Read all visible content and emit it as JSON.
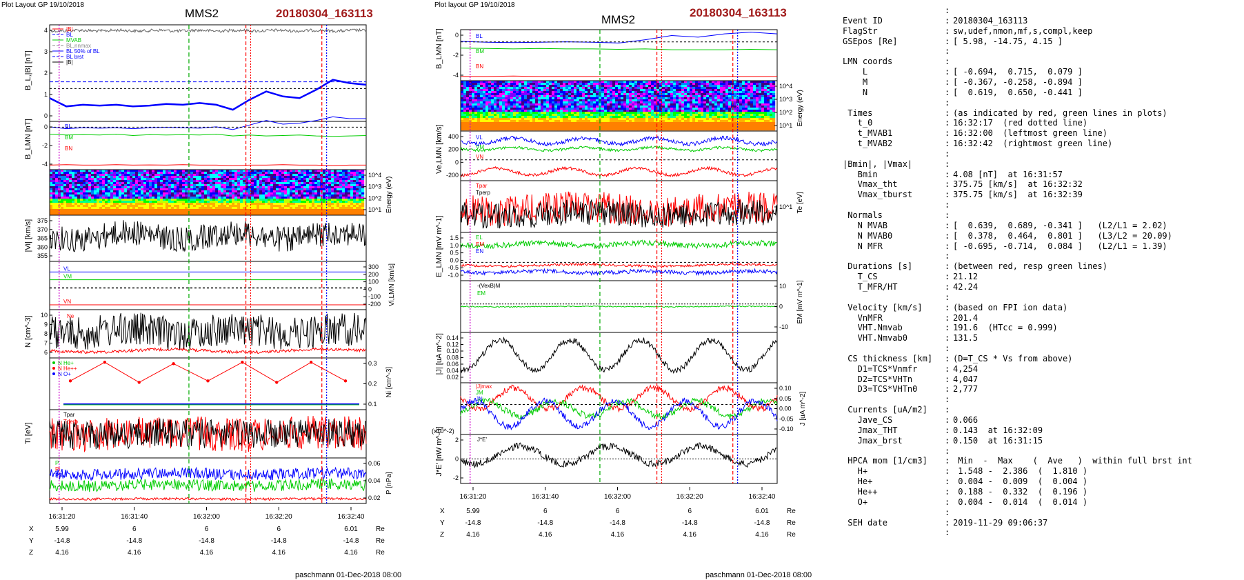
{
  "left": {
    "plot_layout": "Plot Layout GP 19/10/2018",
    "spacecraft": "MMS2",
    "event": "20180304_163113",
    "footer": "paschmann 01-Dec-2018 08:00"
  },
  "middle": {
    "plot_layout": "Plot layout GP 19/10/2018",
    "spacecraft": "MMS2",
    "event": "20180304_163113",
    "footer": "paschmann 01-Dec-2018 08:00"
  },
  "colors": {
    "blue": "#0000ff",
    "green": "#00cc00",
    "red": "#ff0000",
    "black": "#000000",
    "dark_red": "#a11b1b",
    "gray": "#666666"
  },
  "time_ticks": [
    "16:31:20",
    "16:31:40",
    "16:32:00",
    "16:32:20",
    "16:32:40"
  ],
  "coords_table": {
    "rows": [
      {
        "label": "X",
        "values": [
          "5.99",
          "6",
          "6",
          "6",
          "6.01"
        ],
        "unit": "Re"
      },
      {
        "label": "Y",
        "values": [
          "-14.8",
          "-14.8",
          "-14.8",
          "-14.8",
          "-14.8"
        ],
        "unit": "Re"
      },
      {
        "label": "Z",
        "values": [
          "4.16",
          "4.16",
          "4.16",
          "4.16",
          "4.16"
        ],
        "unit": "Re"
      }
    ]
  },
  "chart_data": [
    {
      "type": "line",
      "panel": "left-1",
      "ylabel": "B_L,|B| [nT]",
      "yticks": [
        "4",
        "3",
        "2",
        "1",
        "0"
      ],
      "legend": [
        "|B|",
        "BL",
        "MVAB",
        "BL,nnmax",
        "BL 50% of BL",
        "BL brst",
        "|B|"
      ],
      "series": [
        {
          "name": "|B|",
          "color": "#666666",
          "x": [
            16.31,
            16.32,
            16.33,
            16.34,
            16.35,
            16.36,
            16.37,
            16.38,
            16.39,
            16.4,
            16.41,
            16.42,
            16.43,
            16.44,
            16.45,
            16.46,
            16.47,
            16.48,
            16.49,
            16.5
          ],
          "y": [
            4.1,
            4.05,
            4.1,
            4.08,
            4.1,
            4.09,
            4.12,
            4.1,
            4.08,
            4.11,
            4.1,
            4.12,
            4.15,
            4.13,
            4.14,
            4.16,
            4.12,
            4.15,
            4.14,
            4.15
          ]
        },
        {
          "name": "BL",
          "color": "#0000ff",
          "x": [
            16.31,
            16.32,
            16.33,
            16.34,
            16.35,
            16.36,
            16.37,
            16.38,
            16.39,
            16.4,
            16.41,
            16.42,
            16.43,
            16.44,
            16.45,
            16.46,
            16.47,
            16.48,
            16.49,
            16.5
          ],
          "y": [
            0.2,
            -0.3,
            -0.2,
            -0.25,
            -0.2,
            -0.3,
            -0.25,
            -0.15,
            -0.2,
            -0.1,
            -0.2,
            -0.5,
            0.1,
            0.6,
            0.3,
            0.2,
            0.7,
            1.3,
            1.1,
            1.0
          ]
        }
      ],
      "hlines": [
        0,
        0.5
      ]
    },
    {
      "type": "line",
      "panel": "left-2",
      "ylabel": "B_LMN [nT]",
      "yticks": [
        "0",
        "-2",
        "-4"
      ],
      "legend": [
        "BL",
        "BM",
        "BN"
      ],
      "series": [
        {
          "name": "BL",
          "color": "#0000ff",
          "y": [
            0.1,
            -0.1,
            0.0,
            -0.05,
            0.0,
            -0.1,
            0.0,
            0.05,
            0.0,
            -0.05,
            0.1,
            -0.2,
            0.3,
            0.8,
            0.4,
            0.5,
            0.8,
            1.2,
            1.0,
            1.0
          ]
        },
        {
          "name": "BM",
          "color": "#00cc00",
          "y": [
            -0.7,
            -0.8,
            -0.75,
            -0.8,
            -0.7,
            -0.85,
            -0.75,
            -0.8,
            -0.75,
            -0.8,
            -0.7,
            -0.9,
            -0.8,
            -0.9,
            -0.85,
            -0.8,
            -0.9,
            -0.95,
            -0.9,
            -0.85
          ]
        },
        {
          "name": "BN",
          "color": "#ff0000",
          "y": [
            -4.1,
            -4.05,
            -4.1,
            -4.1,
            -4.05,
            -4.1,
            -4.08,
            -4.1,
            -4.05,
            -4.1,
            -4.1,
            -4.15,
            -4.1,
            -4.1,
            -4.05,
            -4.1,
            -4.1,
            -4.15,
            -4.1,
            -4.1
          ]
        }
      ]
    },
    {
      "type": "heatmap",
      "panel": "left-3",
      "ylabel": "Energy (eV)",
      "yticks": [
        "10^4",
        "10^3",
        "10^2",
        "10^1"
      ]
    },
    {
      "type": "line",
      "panel": "left-4",
      "ylabel": "|Vi| [km/s]",
      "yticks": [
        "375",
        "370",
        "365",
        "360",
        "355"
      ],
      "series": [
        {
          "name": "|Vi|",
          "color": "#000000",
          "mean": 363,
          "amplitude": 6
        }
      ]
    },
    {
      "type": "line",
      "panel": "left-5",
      "ylabel": "Vi,LMN [km/s]",
      "yticks": [
        "300",
        "200",
        "100",
        "0",
        "-100",
        "-200"
      ],
      "legend": [
        "VL",
        "VM",
        "VN"
      ],
      "series": [
        {
          "name": "VL",
          "color": "#0000ff",
          "y": [
            200,
            200,
            200
          ]
        },
        {
          "name": "VM",
          "color": "#00cc00",
          "y": [
            110,
            110,
            110
          ]
        },
        {
          "name": "VN",
          "color": "#ff0000",
          "y": [
            -190,
            -190,
            -190
          ]
        }
      ]
    },
    {
      "type": "line",
      "panel": "left-6",
      "ylabel": "N [cm^-3]",
      "yticks": [
        "10",
        "9",
        "8",
        "7",
        "6"
      ],
      "legend": [
        "Ne",
        "Ni"
      ],
      "series": [
        {
          "name": "Ne",
          "color": "#ff0000",
          "mean": 5.7
        },
        {
          "name": "Ni",
          "color": "#000000",
          "mean": 8,
          "amplitude": 2.5
        }
      ]
    },
    {
      "type": "line",
      "panel": "left-7",
      "ylabel": "Ni [cm^-3]",
      "yticks": [
        "0.3",
        "0.2",
        "0.1"
      ],
      "legend": [
        "N He+",
        "N He++",
        "N O+"
      ],
      "series": [
        {
          "name": "He++",
          "color": "#ff0000",
          "x": [
            0,
            1,
            2,
            3,
            4,
            5,
            6,
            7,
            8
          ],
          "y": [
            0.2,
            0.33,
            0.19,
            0.32,
            0.2,
            0.33,
            0.19,
            0.33,
            0.2
          ]
        },
        {
          "name": "He+",
          "color": "#00cc00",
          "y": [
            0.005,
            0.005
          ]
        },
        {
          "name": "O+",
          "color": "#0000ff",
          "y": [
            0.01,
            0.01
          ]
        }
      ]
    },
    {
      "type": "line",
      "panel": "left-8",
      "ylabel": "Ti [eV]",
      "legend": [
        "Tpar",
        "Tperp"
      ],
      "series": [
        {
          "name": "Tpar",
          "color": "#000000"
        },
        {
          "name": "Tperp",
          "color": "#ff0000"
        }
      ]
    },
    {
      "type": "line",
      "panel": "left-9",
      "ylabel": "P [nPa]",
      "yticks": [
        "0.06",
        "0.04",
        "0.02"
      ],
      "legend": [
        "P",
        "Pi",
        "PB"
      ],
      "series": [
        {
          "name": "P",
          "color": "#0000ff",
          "mean": 0.04
        },
        {
          "name": "Pi",
          "color": "#00cc00",
          "mean": 0.03
        },
        {
          "name": "PB",
          "color": "#ff0000",
          "mean": 0.015
        }
      ]
    },
    {
      "type": "line",
      "panel": "mid-1",
      "ylabel": "B_LMN [nT]",
      "yticks": [
        "0",
        "-2",
        "-4"
      ],
      "legend": [
        "BL",
        "BM",
        "BN"
      ],
      "series": [
        {
          "name": "BL",
          "color": "#0000ff",
          "y": [
            0.1,
            0.0,
            -0.05,
            0.0,
            0.05,
            0.0,
            -0.1,
            0.3,
            0.8,
            0.6,
            1.0,
            1.2,
            1.0
          ]
        },
        {
          "name": "BM",
          "color": "#00cc00",
          "y": [
            -0.7,
            -0.75,
            -0.8,
            -0.75,
            -0.8,
            -0.8,
            -0.85,
            -0.8,
            -0.9,
            -0.9,
            -0.9,
            -0.85,
            -0.9
          ]
        },
        {
          "name": "BN",
          "color": "#ff0000",
          "y": [
            -4.1,
            -4.1,
            -4.05,
            -4.1,
            -4.1,
            -4.1,
            -4.1,
            -4.1,
            -4.1,
            -4.15,
            -4.1,
            -4.1,
            -4.1
          ]
        }
      ]
    },
    {
      "type": "heatmap",
      "panel": "mid-2",
      "ylabel": "Energy (eV)",
      "yticks": [
        "10^4",
        "10^3",
        "10^2",
        "10^1"
      ]
    },
    {
      "type": "line",
      "panel": "mid-3",
      "ylabel": "Ve,LMN [km/s]",
      "yticks": [
        "400",
        "200",
        "0",
        "-200"
      ],
      "legend": [
        "VL",
        "VM",
        "VN"
      ],
      "series": [
        {
          "name": "VL",
          "color": "#0000ff",
          "mean": 320,
          "amplitude": 50
        },
        {
          "name": "VM",
          "color": "#00cc00",
          "mean": 170,
          "amplitude": 20
        },
        {
          "name": "VN",
          "color": "#ff0000",
          "mean": -250,
          "amplitude": 40
        }
      ]
    },
    {
      "type": "line",
      "panel": "mid-4",
      "ylabel": "Te [eV]",
      "yticks": [
        "10^1"
      ],
      "legend": [
        "Tpar",
        "Tperp"
      ],
      "series": [
        {
          "name": "Tpar",
          "color": "#ff0000"
        },
        {
          "name": "Tperp",
          "color": "#000000"
        }
      ]
    },
    {
      "type": "line",
      "panel": "mid-5",
      "ylabel": "E_LMN [mV m^-1]",
      "yticks": [
        "1.5",
        "1.0",
        "0.5",
        "0.0",
        "-0.5",
        "-1.0"
      ],
      "legend": [
        "EL",
        "EM",
        "EN"
      ],
      "series": [
        {
          "name": "EL",
          "color": "#00cc00",
          "mean": 1.0
        },
        {
          "name": "EM",
          "color": "#ff0000",
          "mean": 0.8
        },
        {
          "name": "EN",
          "color": "#0000ff",
          "mean": -0.7
        }
      ]
    },
    {
      "type": "line",
      "panel": "mid-6",
      "ylabel": "EM [mV m^-1]",
      "yticks": [
        "10",
        "0",
        "-10"
      ],
      "legend": [
        "-(VexB)M",
        "EM"
      ],
      "series": [
        {
          "name": "-(VexB)M",
          "color": "#000000",
          "mean": 0
        },
        {
          "name": "EM",
          "color": "#00cc00",
          "mean": -1
        }
      ]
    },
    {
      "type": "line",
      "panel": "mid-7",
      "ylabel": "|J| [uA m^-2]",
      "yticks": [
        "0.14",
        "0.12",
        "0.10",
        "0.08",
        "0.06",
        "0.04",
        "0.02"
      ],
      "series": [
        {
          "name": "|J|",
          "color": "#000000",
          "mean": 0.08,
          "amplitude": 0.05
        }
      ]
    },
    {
      "type": "line",
      "panel": "mid-8",
      "ylabel": "J [uA m^-2]",
      "yticks": [
        "0.10",
        "0.05",
        "0.00",
        "-0.05",
        "-0.10"
      ],
      "legend": [
        "|J|max",
        "JM",
        "JN"
      ],
      "series": [
        {
          "name": "JL",
          "color": "#ff0000",
          "mean": 0.03,
          "amplitude": 0.06
        },
        {
          "name": "JM",
          "color": "#00cc00",
          "mean": -0.02,
          "amplitude": 0.04
        },
        {
          "name": "JN",
          "color": "#0000ff",
          "mean": -0.03,
          "amplitude": 0.07
        }
      ]
    },
    {
      "type": "line",
      "panel": "mid-9",
      "ylabel": "J*E' [nW m^-3]",
      "yticks": [
        "2",
        "0",
        "-2"
      ],
      "scale_note": "(x10^-2)",
      "legend": [
        "J*E'"
      ],
      "series": [
        {
          "name": "J*E'",
          "color": "#000000",
          "mean": 0.5,
          "amplitude": 1.5
        }
      ]
    }
  ],
  "event_info": [
    {
      "label": "",
      "value": ""
    },
    {
      "label": "Event ID",
      "value": "20180304_163113"
    },
    {
      "label": "FlagStr",
      "value": "sw,udef,nmon,mf,s,compl,keep"
    },
    {
      "label": "GSEpos [Re]",
      "value": "[ 5.98, -14.75, 4.15 ]"
    },
    {
      "label": "",
      "value": ""
    },
    {
      "label": "LMN coords",
      "value": ""
    },
    {
      "label": "    L",
      "value": "[ -0.694,  0.715,  0.079 ]"
    },
    {
      "label": "    M",
      "value": "[ -0.367, -0.258, -0.894 ]"
    },
    {
      "label": "    N",
      "value": "[  0.619,  0.650, -0.441 ]"
    },
    {
      "label": "",
      "value": ""
    },
    {
      "label": " Times",
      "value": "(as indicated by red, green lines in plots)"
    },
    {
      "label": "   t_0",
      "value": "16:32:17  (red dotted line)"
    },
    {
      "label": "   t_MVAB1",
      "value": "16:32:00  (leftmost green line)"
    },
    {
      "label": "   t_MVAB2",
      "value": "16:32:42  (rightmost green line)"
    },
    {
      "label": "",
      "value": ""
    },
    {
      "label": "|Bmin|, |Vmax|",
      "value": ""
    },
    {
      "label": "   Bmin",
      "value": "4.08 [nT]  at 16:31:57"
    },
    {
      "label": "   Vmax_tht",
      "value": "375.75 [km/s]  at 16:32:32"
    },
    {
      "label": "   Vmax_tburst",
      "value": "375.75 [km/s]  at 16:32:39"
    },
    {
      "label": "",
      "value": ""
    },
    {
      "label": " Normals",
      "value": ""
    },
    {
      "label": "   N MVAB",
      "value": "[  0.639,  0.689, -0.341 ]   (L2/L1 = 2.02)"
    },
    {
      "label": "   N MVAB0",
      "value": "[  0.378,  0.464,  0.801 ]   (L3/L2 = 20.09)"
    },
    {
      "label": "   N MFR",
      "value": "[ -0.695, -0.714,  0.084 ]   (L2/L1 = 1.39)"
    },
    {
      "label": "",
      "value": ""
    },
    {
      "label": " Durations [s]",
      "value": "(between red, resp green lines)"
    },
    {
      "label": "   T_CS",
      "value": "21.12"
    },
    {
      "label": "   T_MFR/HT",
      "value": "42.24"
    },
    {
      "label": "",
      "value": ""
    },
    {
      "label": " Velocity [km/s]",
      "value": "(based on FPI ion data)"
    },
    {
      "label": "   VnMFR",
      "value": "201.4"
    },
    {
      "label": "   VHT.Nmvab",
      "value": "191.6  (HTcc = 0.999)"
    },
    {
      "label": "   VHT.Nmvab0",
      "value": "131.5"
    },
    {
      "label": "",
      "value": ""
    },
    {
      "label": " CS thickness [km]",
      "value": "(D=T_CS * Vs from above)"
    },
    {
      "label": "   D1=TCS*Vnmfr",
      "value": "4,254"
    },
    {
      "label": "   D2=TCS*VHTn",
      "value": "4,047"
    },
    {
      "label": "   D3=TCS*VHTn0",
      "value": "2,777"
    },
    {
      "label": "",
      "value": ""
    },
    {
      "label": " Currents [uA/m2]",
      "value": ""
    },
    {
      "label": "   Jave_CS",
      "value": "0.066"
    },
    {
      "label": "   Jmax_THT",
      "value": "0.143  at 16:32:09"
    },
    {
      "label": "   Jmax_brst",
      "value": "0.150  at 16:31:15"
    },
    {
      "label": "",
      "value": ""
    },
    {
      "label": " HPCA mom [1/cm3]",
      "value": " Min  -  Max    (  Ave   )  within full brst int"
    },
    {
      "label": "   H+",
      "value": " 1.548 -  2.386  (  1.810 )"
    },
    {
      "label": "   He+",
      "value": " 0.004 -  0.009  (  0.004 )"
    },
    {
      "label": "   He++",
      "value": " 0.188 -  0.332  (  0.196 )"
    },
    {
      "label": "   O+",
      "value": " 0.004 -  0.014  (  0.014 )"
    },
    {
      "label": "",
      "value": ""
    },
    {
      "label": " SEH date",
      "value": "2019-11-29 09:06:37"
    },
    {
      "label": "",
      "value": ""
    }
  ]
}
